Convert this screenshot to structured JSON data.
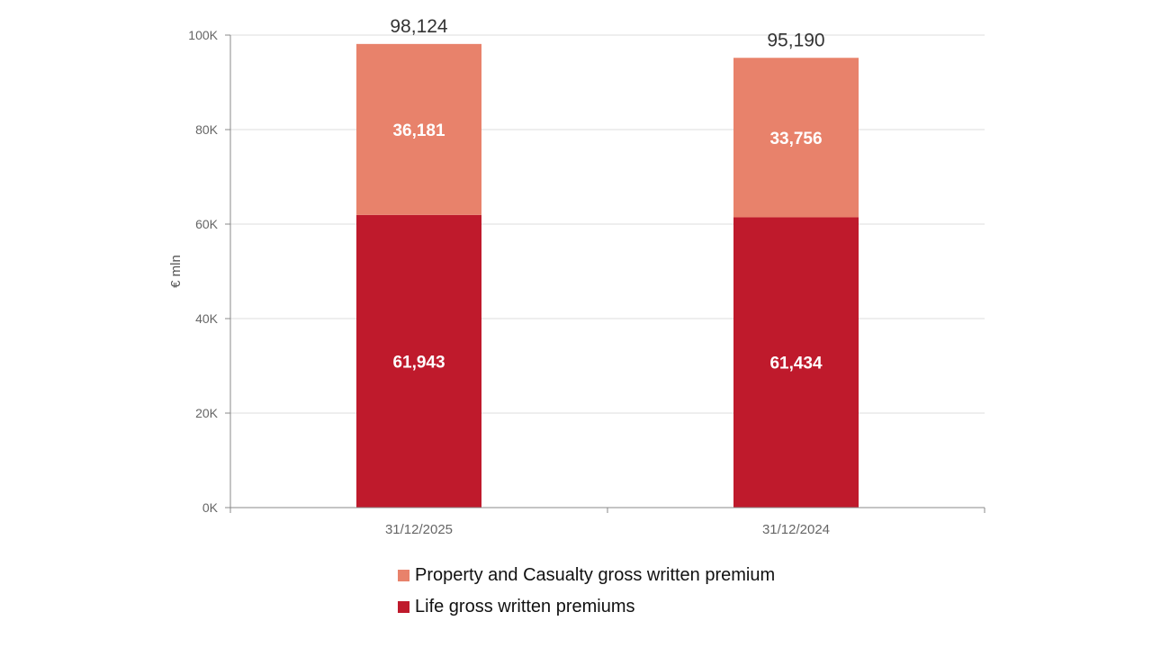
{
  "chart_data": {
    "type": "bar",
    "stacked": true,
    "categories": [
      "31/12/2025",
      "31/12/2024"
    ],
    "series": [
      {
        "name": "Life gross written premiums",
        "color": "#bf1a2c",
        "values": [
          61943,
          61434
        ],
        "labels": [
          "61,943",
          "61,434"
        ]
      },
      {
        "name": "Property and Casualty gross written premium",
        "color": "#e8826b",
        "values": [
          36181,
          33756
        ],
        "labels": [
          "36,181",
          "33,756"
        ]
      }
    ],
    "totals": [
      98124,
      95190
    ],
    "total_labels": [
      "98,124",
      "95,190"
    ],
    "title": "",
    "xlabel": "",
    "ylabel": "€ mln",
    "ylim": [
      0,
      100000
    ],
    "yticks": [
      0,
      20000,
      40000,
      60000,
      80000,
      100000
    ],
    "ytick_labels": [
      "0K",
      "20K",
      "40K",
      "60K",
      "80K",
      "100K"
    ],
    "grid": true,
    "legend_position": "bottom"
  }
}
